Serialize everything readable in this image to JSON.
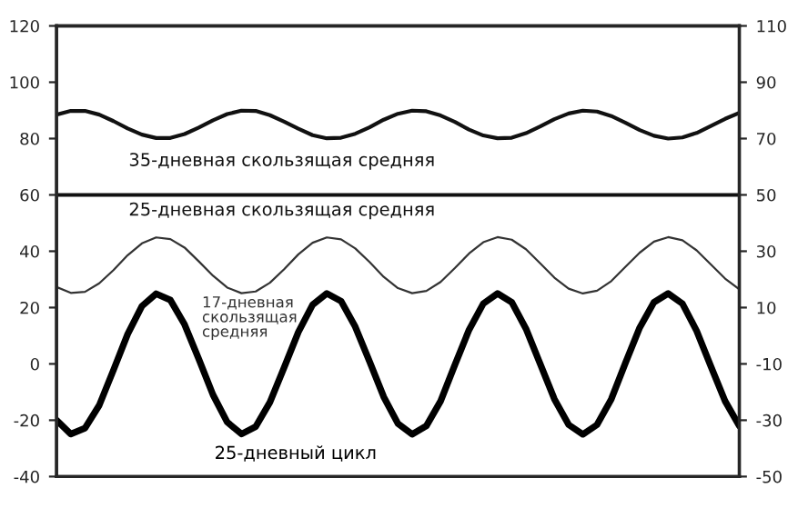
{
  "chart_data": {
    "type": "line",
    "categories": [
      null,
      null,
      null,
      null,
      null,
      null,
      null,
      null,
      null,
      null,
      null,
      null,
      null,
      null,
      null,
      null,
      null,
      null,
      null,
      null,
      null,
      null,
      null,
      null,
      null,
      null,
      null,
      null,
      null,
      null,
      null,
      null,
      null,
      null,
      null,
      null,
      null,
      null,
      null,
      null,
      null,
      null,
      null,
      null,
      null,
      null,
      null,
      null,
      null
    ],
    "series": [
      {
        "name": "35-дневная скользящая средняя",
        "color": "#111111",
        "values": [
          88.5,
          89.8,
          89.8,
          88.5,
          86.2,
          83.6,
          81.4,
          80.2,
          80.2,
          81.6,
          83.9,
          86.5,
          88.7,
          89.9,
          89.8,
          88.3,
          86,
          83.5,
          81.2,
          80.1,
          80.3,
          81.7,
          84,
          86.7,
          88.8,
          89.9,
          89.7,
          88.2,
          85.9,
          83.2,
          81.1,
          80.1,
          80.3,
          81.9,
          84.3,
          86.9,
          88.9,
          89.9,
          89.6,
          88,
          85.6,
          83,
          81,
          80,
          80.4,
          82,
          84.5,
          87,
          89.1
        ]
      },
      {
        "name": "25-дневная скользящая средняя",
        "color": "#111111",
        "values": [
          60,
          60,
          60,
          60,
          60,
          60,
          60,
          60,
          60,
          60,
          60,
          60,
          60,
          60,
          60,
          60,
          60,
          60,
          60,
          60,
          60,
          60,
          60,
          60,
          60,
          60,
          60,
          60,
          60,
          60,
          60,
          60,
          60,
          60,
          60,
          60,
          60,
          60,
          60,
          60,
          60,
          60,
          60,
          60,
          60,
          60,
          60,
          60,
          60
        ]
      },
      {
        "name": "17-дневная\nскользящая\nсредняя",
        "color": "#333333",
        "values": [
          27.3,
          25.2,
          25.6,
          28.6,
          33.3,
          38.6,
          42.8,
          44.9,
          44.3,
          41.3,
          36.4,
          31.3,
          27.1,
          25.1,
          25.7,
          28.8,
          33.6,
          38.9,
          43,
          44.9,
          44.2,
          41,
          36.2,
          30.9,
          26.9,
          25.1,
          25.9,
          29.1,
          34,
          39.2,
          43.2,
          45,
          44.1,
          40.7,
          35.7,
          30.6,
          26.7,
          25,
          26,
          29.4,
          34.5,
          39.5,
          43.4,
          45,
          43.9,
          40.3,
          35.3,
          30.3,
          26.5
        ]
      },
      {
        "name": "25-дневный цикл",
        "color": "#000000",
        "values": [
          -20,
          -24.9,
          -22.8,
          -14.7,
          -2.2,
          10.6,
          20.5,
          24.9,
          22.7,
          14,
          1.7,
          -11,
          -20.7,
          -24.9,
          -22.3,
          -13.6,
          -1.3,
          11.3,
          21,
          25,
          22.3,
          13.2,
          0.9,
          -11.7,
          -21.2,
          -25,
          -22,
          -13.2,
          -0.4,
          12.1,
          21.4,
          25,
          21.9,
          12.5,
          0,
          -12.5,
          -21.6,
          -25,
          -21.6,
          -12.5,
          0.4,
          12.9,
          21.9,
          25,
          21.4,
          11.7,
          -0.9,
          -13.2,
          -22
        ]
      }
    ],
    "ylim": [
      -40,
      120
    ],
    "yticks": [
      -40,
      -20,
      0,
      20,
      40,
      60,
      80,
      100,
      120
    ],
    "y2lim": [
      -50,
      110
    ],
    "y2ticks": [
      -50,
      -30,
      -10,
      10,
      30,
      50,
      70,
      90,
      110
    ],
    "grid": false
  }
}
